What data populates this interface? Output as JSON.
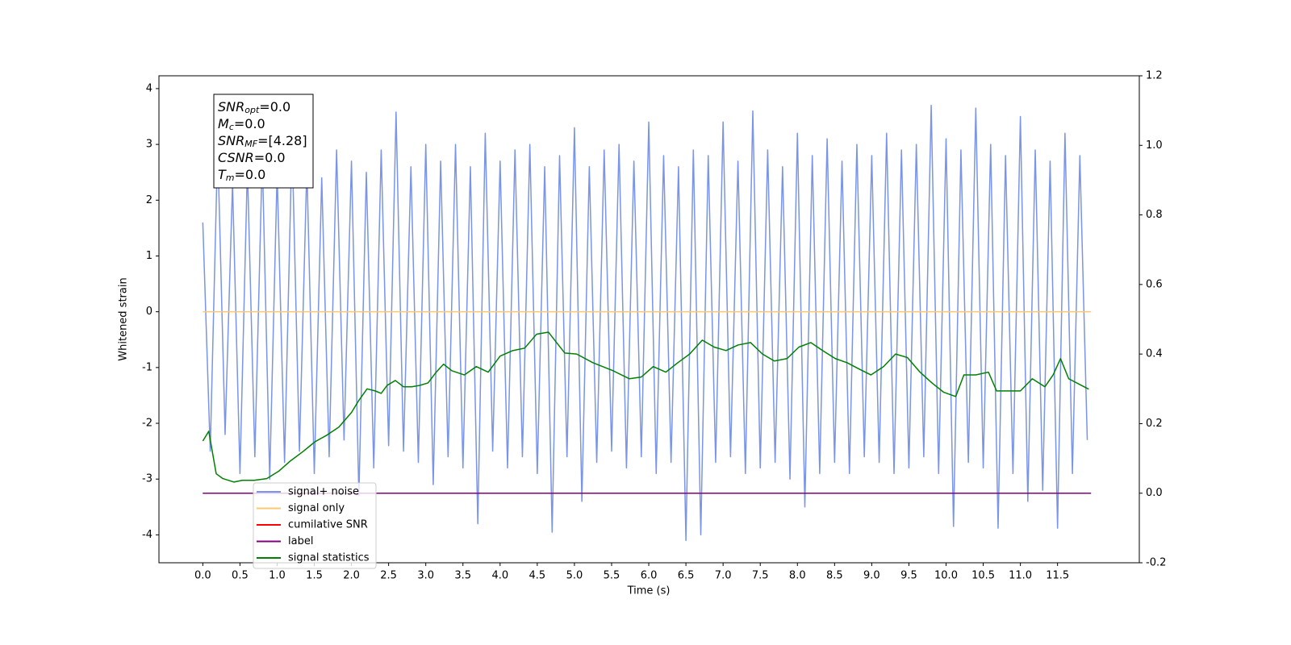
{
  "chart_data": {
    "type": "line",
    "xlabel": "Time (s)",
    "ylabel": "Whitened strain",
    "xlim": [
      -0.59,
      12.6
    ],
    "ylim": [
      -4.5,
      4.23
    ],
    "y2lim": [
      -0.2,
      1.2
    ],
    "xticks": [
      {
        "value": 0,
        "label": "0.0"
      },
      0.5,
      {
        "value": 1,
        "label": "1.0"
      },
      1.5,
      {
        "value": 2,
        "label": "2.0"
      },
      2.5,
      {
        "value": 3,
        "label": "3.0"
      },
      3.5,
      {
        "value": 4,
        "label": "4.0"
      },
      4.5,
      {
        "value": 5,
        "label": "5.0"
      },
      5.5,
      {
        "value": 6,
        "label": "6.0"
      },
      6.5,
      {
        "value": 7,
        "label": "7.0"
      },
      7.5,
      {
        "value": 8,
        "label": "8.0"
      },
      8.5,
      {
        "value": 9,
        "label": "9.0"
      },
      9.5,
      {
        "value": 10,
        "label": "10.0"
      },
      10.5,
      {
        "value": 11,
        "label": "11.0"
      },
      11.5
    ],
    "yticks": [
      -4,
      -3,
      -2,
      -1,
      0,
      1,
      2,
      3,
      4
    ],
    "y2ticks": [
      -0.2,
      {
        "value": 0,
        "label": "0.0"
      },
      0.2,
      0.4,
      0.6,
      0.8,
      {
        "value": 1,
        "label": "1.0"
      },
      1.2
    ],
    "legend": "lower left",
    "annotation": [
      {
        "symbol": "SNR",
        "subscript": "opt",
        "value": "=0.0"
      },
      {
        "symbol": "M",
        "subscript": "c",
        "value": "=0.0"
      },
      {
        "symbol": "SNR",
        "subscript": "MF",
        "value": "=[4.28]"
      },
      {
        "symbol": "CSNR",
        "value": "=0.0"
      },
      {
        "symbol": "T",
        "subscript": "m",
        "value": "=0.0"
      }
    ],
    "series": [
      {
        "name": "signal+ noise",
        "color": "#7994e8",
        "x": [
          0.0,
          0.1,
          0.2,
          0.3,
          0.4,
          0.5,
          0.6,
          0.7,
          0.8,
          0.9,
          1.0,
          1.1,
          1.2,
          1.3,
          1.4,
          1.5,
          1.6,
          1.7,
          1.8,
          1.9,
          2.0,
          2.1,
          2.2,
          2.3,
          2.4,
          2.5,
          2.6,
          2.7,
          2.8,
          2.9,
          3.0,
          3.1,
          3.2,
          3.3,
          3.4,
          3.5,
          3.6,
          3.7,
          3.8,
          3.9,
          4.0,
          4.1,
          4.2,
          4.3,
          4.4,
          4.5,
          4.6,
          4.7,
          4.8,
          4.9,
          5.0,
          5.1,
          5.2,
          5.3,
          5.4,
          5.5,
          5.6,
          5.7,
          5.8,
          5.9,
          6.0,
          6.1,
          6.2,
          6.3,
          6.4,
          6.5,
          6.6,
          6.7,
          6.8,
          6.9,
          7.0,
          7.1,
          7.2,
          7.3,
          7.4,
          7.5,
          7.6,
          7.7,
          7.8,
          7.9,
          8.0,
          8.1,
          8.2,
          8.3,
          8.4,
          8.5,
          8.6,
          8.7,
          8.8,
          8.9,
          9.0,
          9.1,
          9.2,
          9.3,
          9.4,
          9.5,
          9.6,
          9.7,
          9.8,
          9.9,
          10.0,
          10.1,
          10.2,
          10.3,
          10.4,
          10.5,
          10.6,
          10.7,
          10.8,
          10.9,
          11.0,
          11.1,
          11.2,
          11.3,
          11.4,
          11.5,
          11.6,
          11.7,
          11.8,
          11.9
        ],
        "values": [
          1.6,
          -2.5,
          3.0,
          -2.2,
          2.3,
          -2.9,
          2.6,
          -2.6,
          2.8,
          -3.0,
          2.5,
          -2.7,
          3.1,
          -2.5,
          2.6,
          -2.9,
          2.4,
          -2.6,
          2.9,
          -2.3,
          2.7,
          -3.3,
          2.5,
          -2.8,
          2.9,
          -2.4,
          3.58,
          -2.5,
          2.6,
          -2.7,
          3.0,
          -3.1,
          2.7,
          -2.6,
          3.0,
          -2.8,
          2.6,
          -3.8,
          3.2,
          -2.5,
          2.7,
          -2.8,
          2.9,
          -2.6,
          3.0,
          -2.9,
          2.6,
          -3.95,
          2.8,
          -2.6,
          3.3,
          -3.4,
          2.6,
          -2.7,
          2.9,
          -2.5,
          3.0,
          -2.8,
          2.7,
          -2.6,
          3.4,
          -2.9,
          2.8,
          -2.7,
          2.6,
          -4.1,
          2.9,
          -4.0,
          2.8,
          -2.7,
          3.4,
          -2.6,
          2.7,
          -2.9,
          3.6,
          -2.8,
          2.9,
          -2.7,
          2.6,
          -3.0,
          3.2,
          -3.5,
          2.8,
          -2.9,
          3.1,
          -2.7,
          2.7,
          -2.9,
          3.0,
          -2.6,
          2.8,
          -2.7,
          3.2,
          -2.9,
          2.9,
          -2.8,
          3.0,
          -2.6,
          3.7,
          -2.9,
          3.1,
          -3.85,
          2.9,
          -2.7,
          3.65,
          -2.8,
          3.0,
          -3.88,
          2.8,
          -2.9,
          3.5,
          -3.4,
          2.9,
          -3.2,
          2.7,
          -3.88,
          3.2,
          -2.9,
          2.8,
          -2.3
        ]
      },
      {
        "name": "signal only",
        "color": "#ffc870",
        "x": [
          0,
          11.95
        ],
        "values": [
          0,
          0
        ]
      },
      {
        "name": "cumilative SNR",
        "color": "#ff0000",
        "axis": "y2",
        "x": [
          0,
          11.95
        ],
        "values": [
          0,
          0
        ]
      },
      {
        "name": "label",
        "color": "#800080",
        "axis": "y2",
        "x": [
          0,
          11.95
        ],
        "values": [
          0,
          0
        ]
      },
      {
        "name": "signal statistics",
        "color": "#008000",
        "axis": "y2",
        "x": [
          0,
          0.08,
          0.18,
          0.27,
          0.42,
          0.53,
          0.69,
          0.86,
          1.02,
          1.18,
          1.35,
          1.51,
          1.67,
          1.83,
          2.0,
          2.1,
          2.21,
          2.32,
          2.4,
          2.48,
          2.59,
          2.7,
          2.81,
          2.92,
          3.03,
          3.14,
          3.24,
          3.35,
          3.52,
          3.68,
          3.84,
          4.0,
          4.17,
          4.33,
          4.49,
          4.65,
          4.76,
          4.87,
          5.03,
          5.25,
          5.52,
          5.74,
          5.9,
          6.06,
          6.23,
          6.39,
          6.55,
          6.72,
          6.88,
          7.04,
          7.2,
          7.37,
          7.53,
          7.69,
          7.86,
          8.02,
          8.18,
          8.34,
          8.51,
          8.67,
          8.83,
          8.99,
          9.16,
          9.32,
          9.48,
          9.65,
          9.81,
          9.97,
          10.13,
          10.24,
          10.4,
          10.57,
          10.68,
          10.84,
          11.0,
          11.16,
          11.33,
          11.44,
          11.54,
          11.65,
          11.82,
          11.92
        ],
        "values": [
          0.15,
          0.178,
          0.056,
          0.042,
          0.032,
          0.037,
          0.037,
          0.042,
          0.063,
          0.093,
          0.12,
          0.148,
          0.167,
          0.19,
          0.232,
          0.267,
          0.3,
          0.294,
          0.287,
          0.31,
          0.324,
          0.306,
          0.306,
          0.31,
          0.317,
          0.348,
          0.371,
          0.352,
          0.34,
          0.364,
          0.348,
          0.394,
          0.41,
          0.417,
          0.457,
          0.463,
          0.433,
          0.403,
          0.4,
          0.375,
          0.352,
          0.329,
          0.334,
          0.364,
          0.348,
          0.375,
          0.4,
          0.44,
          0.42,
          0.41,
          0.426,
          0.433,
          0.4,
          0.38,
          0.387,
          0.42,
          0.433,
          0.41,
          0.387,
          0.375,
          0.357,
          0.34,
          0.364,
          0.4,
          0.39,
          0.348,
          0.317,
          0.29,
          0.278,
          0.34,
          0.34,
          0.348,
          0.294,
          0.294,
          0.294,
          0.329,
          0.306,
          0.34,
          0.387,
          0.329,
          0.31,
          0.299
        ]
      }
    ]
  }
}
